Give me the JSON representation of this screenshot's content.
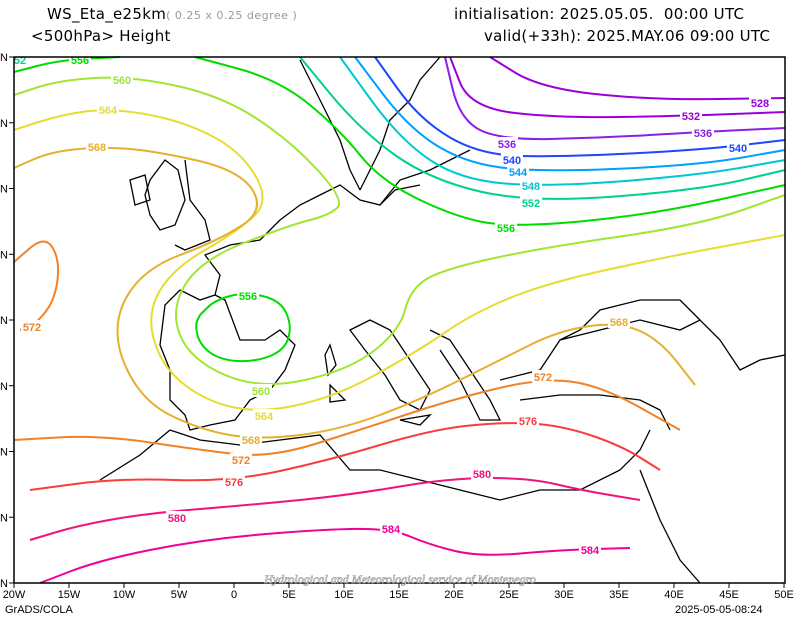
{
  "header": {
    "model": "WS_Eta_e25km",
    "resolution": "( 0.25 x 0.25 degree )",
    "field": "<500hPa> Height",
    "initialisation": "initialisation: 2025.05.05.  00:00 UTC",
    "valid": "valid(+33h): 2025.MAY.06 09:00 UTC"
  },
  "footer": {
    "software": "GrADS/COLA",
    "timestamp": "2025-05-05-08:24",
    "watermark": "Hydrological and Meteorological service of Montenegro"
  },
  "axes": {
    "lon_labels": [
      "20W",
      "15W",
      "10W",
      "5W",
      "0",
      "5E",
      "10E",
      "15E",
      "20E",
      "25E",
      "30E",
      "35E",
      "40E",
      "45E",
      "50E"
    ],
    "lat_labels": [
      "N",
      "N",
      "N",
      "N",
      "N",
      "N",
      "N",
      "N",
      "N"
    ]
  },
  "contours": [
    {
      "level": "528",
      "color": "#9b00d9",
      "labels": [
        "528"
      ]
    },
    {
      "level": "532",
      "color": "#9b00d9",
      "labels": [
        "532"
      ]
    },
    {
      "level": "536",
      "color": "#8c1ee6",
      "labels": [
        "536",
        "536"
      ]
    },
    {
      "level": "540",
      "color": "#1e46ff",
      "labels": [
        "540",
        "540"
      ]
    },
    {
      "level": "544",
      "color": "#00a0ff",
      "labels": [
        "544"
      ]
    },
    {
      "level": "548",
      "color": "#00c8d2",
      "labels": [
        "548"
      ]
    },
    {
      "level": "552",
      "color": "#00d28c",
      "labels": [
        "552",
        "52"
      ]
    },
    {
      "level": "556",
      "color": "#00dc00",
      "labels": [
        "556",
        "556",
        "556"
      ]
    },
    {
      "level": "560",
      "color": "#a0e632",
      "labels": [
        "560",
        "560"
      ]
    },
    {
      "level": "564",
      "color": "#e6dc32",
      "labels": [
        "564",
        "564"
      ]
    },
    {
      "level": "568",
      "color": "#e6af2d",
      "labels": [
        "568",
        "568",
        "568"
      ]
    },
    {
      "level": "572",
      "color": "#f08228",
      "labels": [
        "572",
        "572",
        "572"
      ]
    },
    {
      "level": "576",
      "color": "#fa3c3c",
      "labels": [
        "576",
        "576"
      ]
    },
    {
      "level": "580",
      "color": "#f0147a",
      "labels": [
        "580",
        "580"
      ]
    },
    {
      "level": "584",
      "color": "#f00096",
      "labels": [
        "584",
        "584"
      ]
    }
  ]
}
